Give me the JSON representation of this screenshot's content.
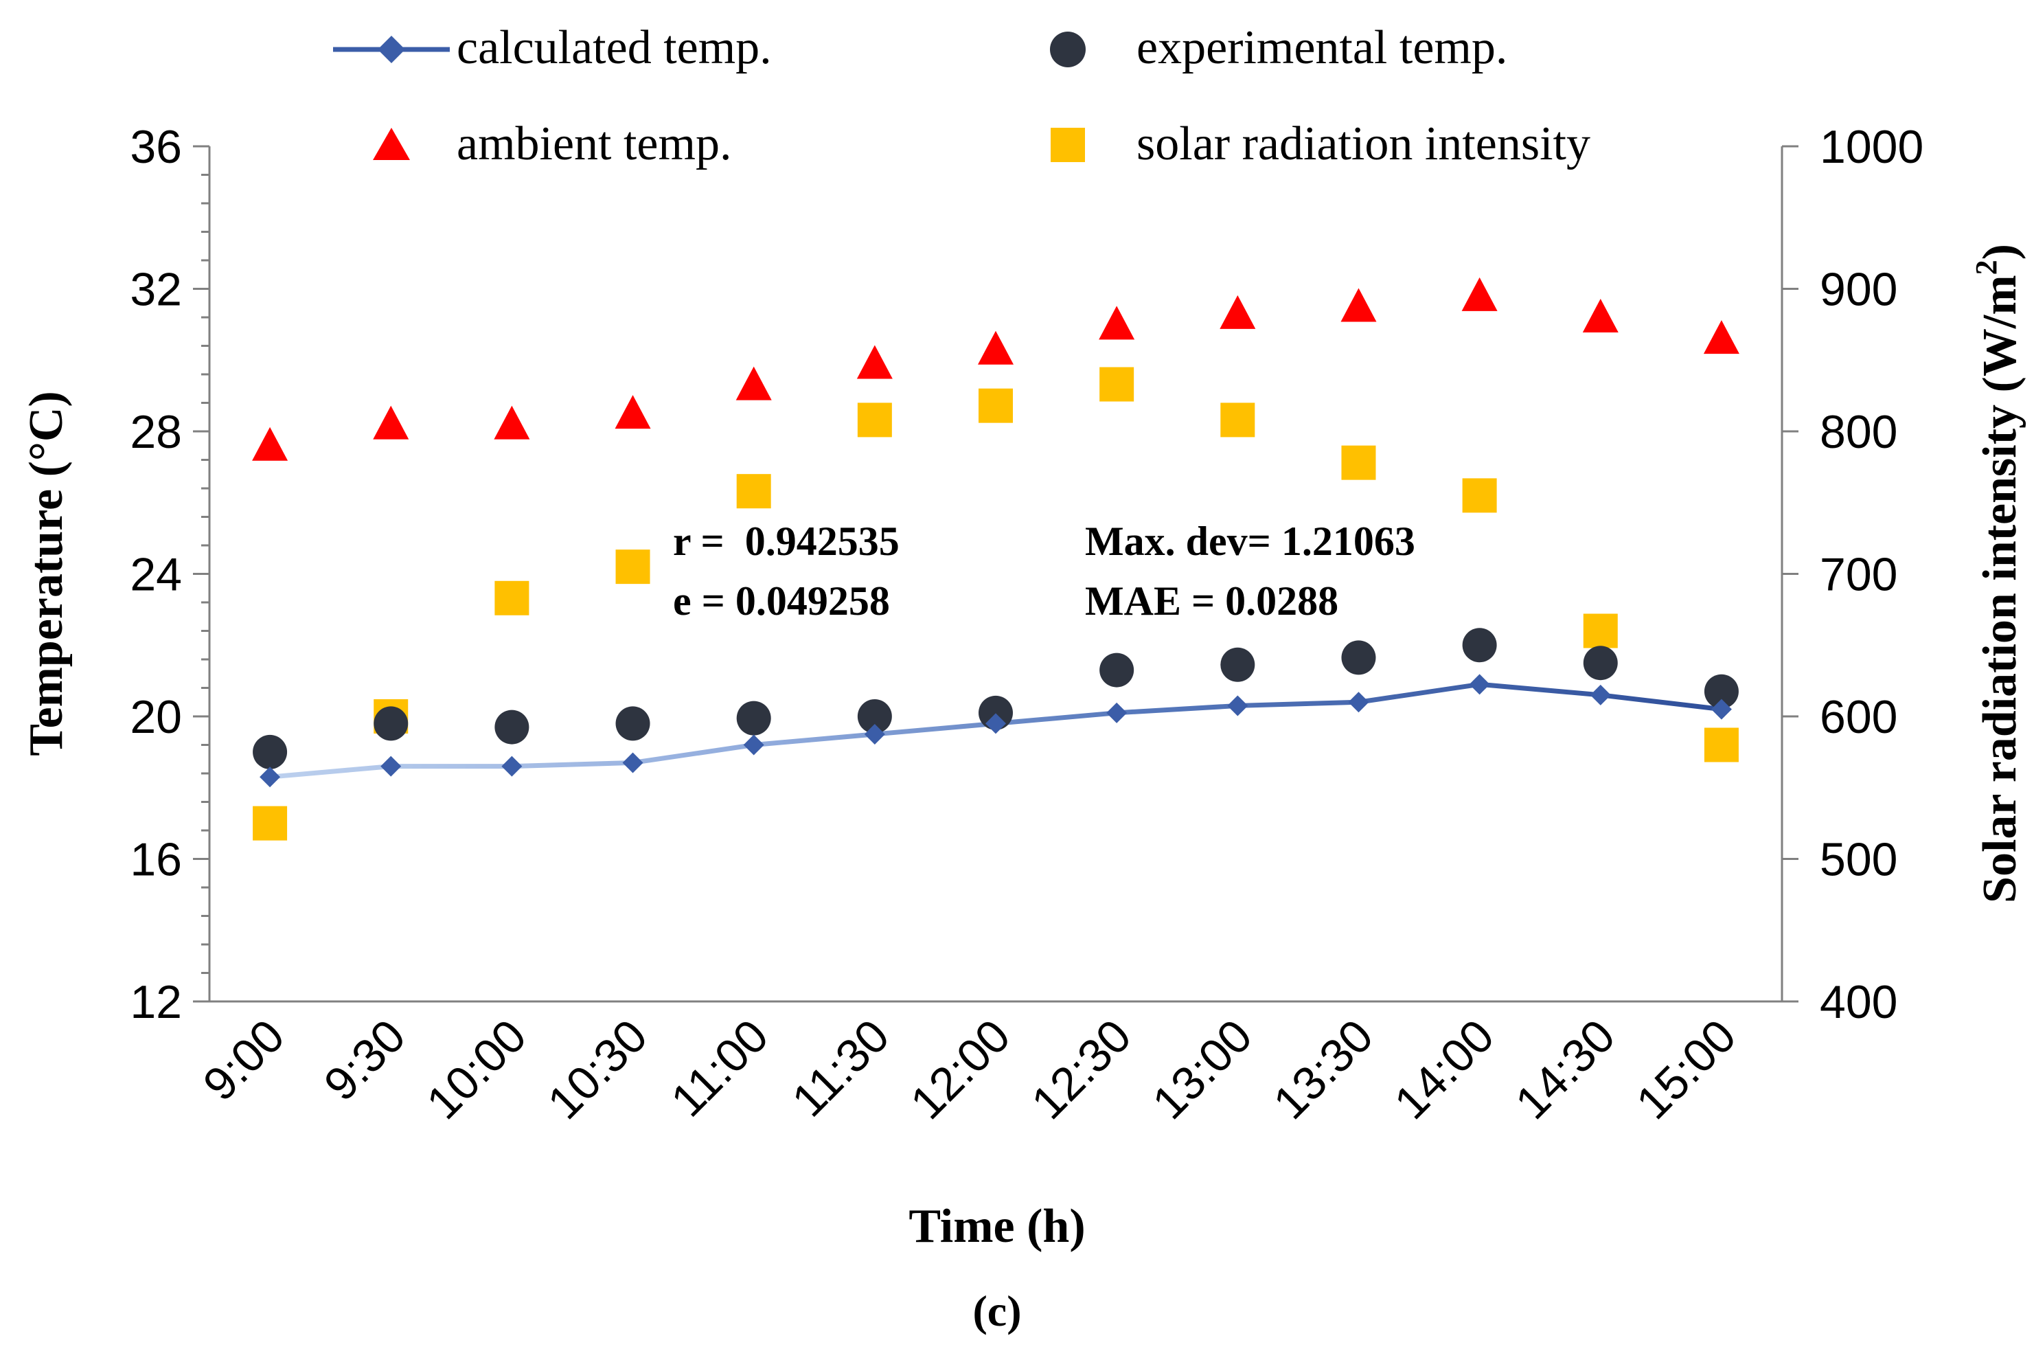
{
  "chart_data": {
    "type": "line",
    "categories": [
      "9:00",
      "9:30",
      "10:00",
      "10:30",
      "11:00",
      "11:30",
      "12:00",
      "12:30",
      "13:00",
      "13:30",
      "14:00",
      "14:30",
      "15:00"
    ],
    "series": [
      {
        "name": "calculated temp.",
        "axis": "left",
        "marker": "diamond-line",
        "color": "#3B5DA8",
        "values": [
          18.3,
          18.6,
          18.6,
          18.7,
          19.2,
          19.5,
          19.8,
          20.1,
          20.3,
          20.4,
          20.9,
          20.6,
          20.2
        ]
      },
      {
        "name": "experimental temp.",
        "axis": "left",
        "marker": "circle",
        "color": "#2E3440",
        "values": [
          19.0,
          19.8,
          19.7,
          19.8,
          19.95,
          20.0,
          20.1,
          21.3,
          21.45,
          21.65,
          22.0,
          21.5,
          20.7
        ]
      },
      {
        "name": "ambient temp.",
        "axis": "left",
        "marker": "triangle",
        "color": "#FF0000",
        "values": [
          27.6,
          28.2,
          28.2,
          28.5,
          29.3,
          29.9,
          30.3,
          31.0,
          31.3,
          31.5,
          31.8,
          31.2,
          30.6
        ]
      },
      {
        "name": "solar radiation intensity",
        "axis": "right",
        "marker": "square",
        "color": "#FFC000",
        "values": [
          525,
          600,
          683,
          705,
          758,
          808,
          818,
          833,
          808,
          778,
          755,
          660,
          580
        ]
      }
    ],
    "xlabel": "Time (h)",
    "ylabel": "Temperature (°C)",
    "y2label_main": "Solar radiation intensity (W/m",
    "y2label_sup": "2",
    "y2label_end": ")",
    "ylim": [
      12,
      36
    ],
    "yticks": [
      12,
      16,
      20,
      24,
      28,
      32,
      36
    ],
    "y2lim": [
      400,
      1000
    ],
    "y2ticks": [
      400,
      500,
      600,
      700,
      800,
      900,
      1000
    ],
    "legend_position": "top",
    "annotations": {
      "r": "r =  0.942535",
      "e": "e = 0.049258",
      "maxdev": "Max. dev= 1.21063",
      "mae": "MAE = 0.0288"
    },
    "caption": "(c)"
  }
}
